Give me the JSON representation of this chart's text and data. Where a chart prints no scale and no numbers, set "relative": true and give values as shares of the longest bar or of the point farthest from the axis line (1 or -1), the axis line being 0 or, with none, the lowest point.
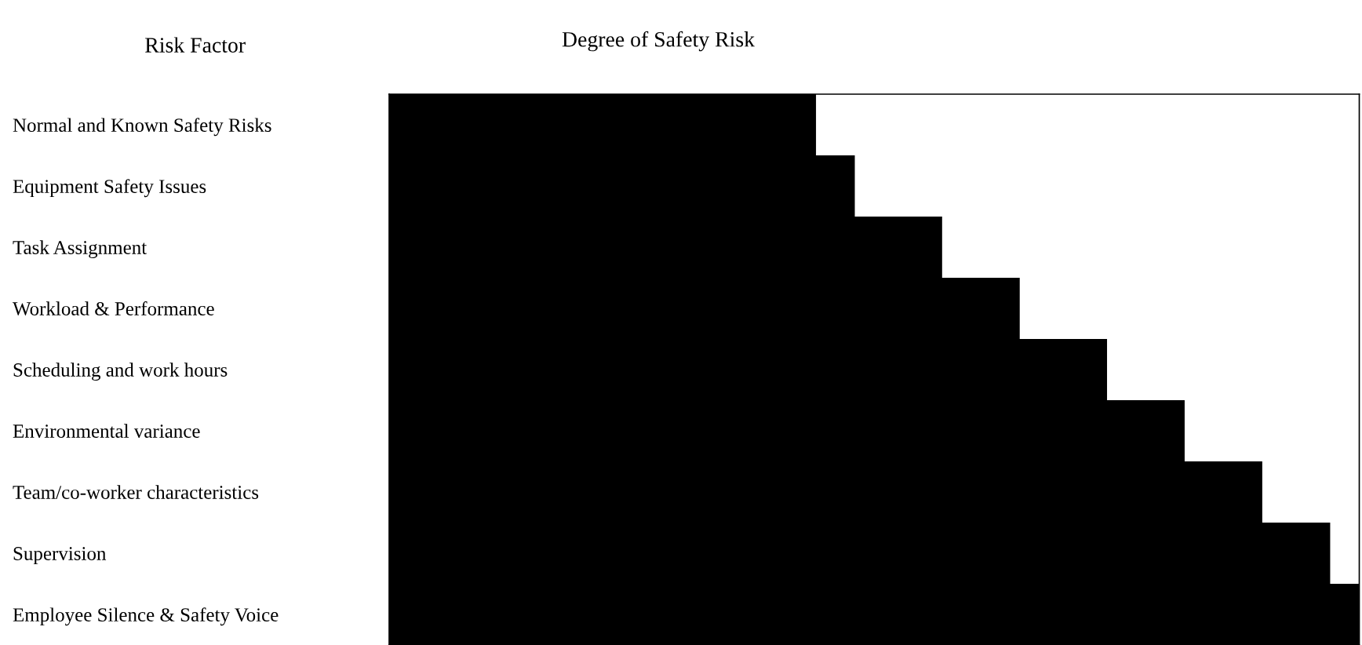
{
  "chart_data": {
    "type": "bar",
    "orientation": "horizontal",
    "relative": true,
    "title": "Degree of Safety Risk",
    "ylabel": "Risk Factor",
    "categories": [
      "Normal and Known Safety Risks",
      "Equipment Safety Issues",
      "Task Assignment",
      "Workload & Performance",
      "Scheduling and work hours",
      "Environmental variance",
      "Team/co-worker characteristics",
      "Supervision",
      "Employee Silence & Safety Voice"
    ],
    "values": [
      0.44,
      0.48,
      0.57,
      0.65,
      0.74,
      0.82,
      0.9,
      0.97,
      1
    ],
    "color": "#000000",
    "grid": false
  }
}
